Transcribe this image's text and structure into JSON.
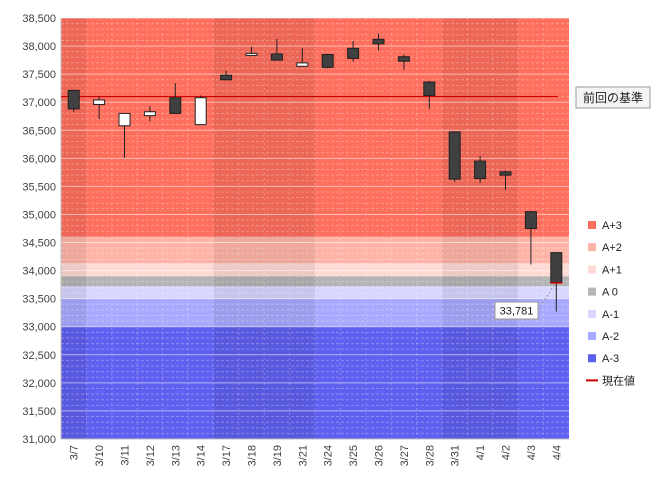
{
  "chart_data": {
    "type": "candlestick",
    "ylim": [
      31000,
      38500
    ],
    "yticks": [
      31000,
      31500,
      32000,
      32500,
      33000,
      33500,
      34000,
      34500,
      35000,
      35500,
      36000,
      36500,
      37000,
      37500,
      38000,
      38500
    ],
    "ytick_labels": [
      "31,000",
      "31,500",
      "32,000",
      "32,500",
      "33,000",
      "33,500",
      "34,000",
      "34,500",
      "35,000",
      "35,500",
      "36,000",
      "36,500",
      "37,000",
      "37,500",
      "38,000",
      "38,500"
    ],
    "categories": [
      "3/7",
      "3/10",
      "3/11",
      "3/12",
      "3/13",
      "3/14",
      "3/17",
      "3/18",
      "3/19",
      "3/21",
      "3/24",
      "3/25",
      "3/26",
      "3/27",
      "3/28",
      "3/31",
      "4/1",
      "4/2",
      "4/3",
      "4/4"
    ],
    "candles": [
      {
        "open": 37210,
        "high": 37220,
        "low": 36830,
        "close": 36880
      },
      {
        "open": 36960,
        "high": 37100,
        "low": 36700,
        "close": 37040
      },
      {
        "open": 36580,
        "high": 36800,
        "low": 36010,
        "close": 36800
      },
      {
        "open": 36760,
        "high": 36930,
        "low": 36660,
        "close": 36830
      },
      {
        "open": 37080,
        "high": 37340,
        "low": 36800,
        "close": 36800
      },
      {
        "open": 36600,
        "high": 37120,
        "low": 36600,
        "close": 37080
      },
      {
        "open": 37480,
        "high": 37560,
        "low": 37390,
        "close": 37400
      },
      {
        "open": 37850,
        "high": 37990,
        "low": 37820,
        "close": 37870
      },
      {
        "open": 37860,
        "high": 38130,
        "low": 37740,
        "close": 37750
      },
      {
        "open": 37640,
        "high": 37960,
        "low": 37640,
        "close": 37700
      },
      {
        "open": 37850,
        "high": 37860,
        "low": 37600,
        "close": 37620
      },
      {
        "open": 37960,
        "high": 38090,
        "low": 37720,
        "close": 37780
      },
      {
        "open": 38120,
        "high": 38220,
        "low": 37920,
        "close": 38040
      },
      {
        "open": 37810,
        "high": 37850,
        "low": 37580,
        "close": 37730
      },
      {
        "open": 37360,
        "high": 37380,
        "low": 36880,
        "close": 37120
      },
      {
        "open": 36470,
        "high": 36470,
        "low": 35580,
        "close": 35630
      },
      {
        "open": 35950,
        "high": 36040,
        "low": 35560,
        "close": 35640
      },
      {
        "open": 35760,
        "high": 35780,
        "low": 35440,
        "close": 35700
      },
      {
        "open": 35050,
        "high": 35060,
        "low": 34110,
        "close": 34750
      },
      {
        "open": 34320,
        "high": 34330,
        "low": 33270,
        "close": 33781
      }
    ],
    "reference_level": 37100,
    "reference_label": "前回の基準",
    "current_value": 33781,
    "current_value_label": "33,781",
    "zones": [
      {
        "name": "A+3",
        "from": 34600,
        "to": 38500,
        "color": "#ff6f5e"
      },
      {
        "name": "A+2",
        "from": 34130,
        "to": 34600,
        "color": "#ffb4a8"
      },
      {
        "name": "A+1",
        "from": 33900,
        "to": 34130,
        "color": "#ffd9d3"
      },
      {
        "name": "A 0",
        "from": 33720,
        "to": 33900,
        "color": "#b4b4b4"
      },
      {
        "name": "A-1",
        "from": 33500,
        "to": 33720,
        "color": "#d6d6ff"
      },
      {
        "name": "A-2",
        "from": 33000,
        "to": 33500,
        "color": "#a9a9ff"
      },
      {
        "name": "A-3",
        "from": 31000,
        "to": 33000,
        "color": "#6060f0"
      }
    ],
    "week_shading_groups": [
      [
        0,
        0
      ],
      [
        6,
        9
      ],
      [
        15,
        17
      ]
    ],
    "legend": [
      {
        "label": "A+3",
        "color": "#ff6f5e",
        "kind": "box"
      },
      {
        "label": "A+2",
        "color": "#ffb4a8",
        "kind": "box"
      },
      {
        "label": "A+1",
        "color": "#ffd9d3",
        "kind": "box"
      },
      {
        "label": "A 0",
        "color": "#b4b4b4",
        "kind": "box"
      },
      {
        "label": "A-1",
        "color": "#d6d6ff",
        "kind": "box"
      },
      {
        "label": "A-2",
        "color": "#a9a9ff",
        "kind": "box"
      },
      {
        "label": "A-3",
        "color": "#6060f0",
        "kind": "box"
      },
      {
        "label": "現在値",
        "color": "#cc0000",
        "kind": "line"
      }
    ],
    "grid": true,
    "colors": {
      "up": "#ffffff",
      "down": "#404040",
      "reference": "#cc0000"
    }
  }
}
